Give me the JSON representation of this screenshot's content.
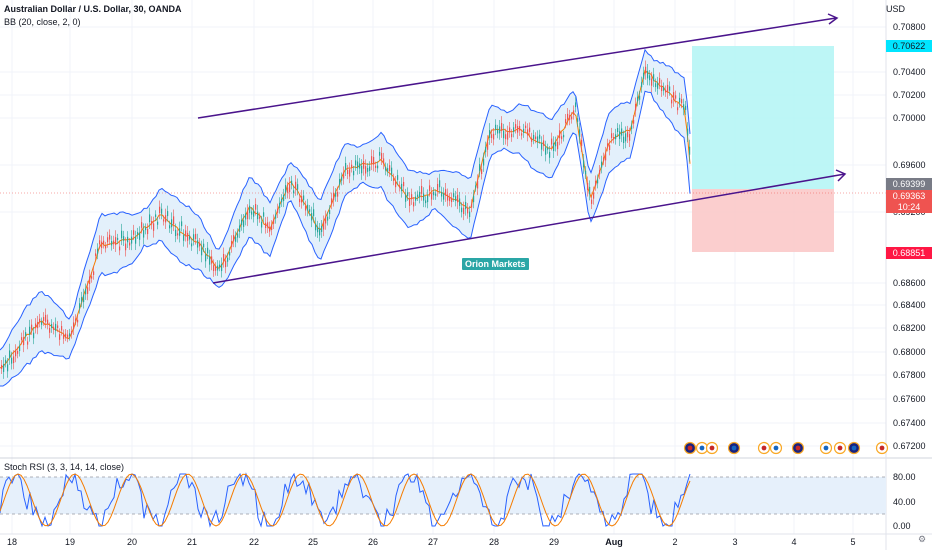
{
  "header": {
    "symbol_line": "Australian Dollar / U.S. Dollar, 30, OANDA",
    "indicator_line": "BB (20, close, 2, 0)"
  },
  "rsi_panel": {
    "label": "Stoch RSI (3, 3, 14, 14, close)",
    "levels": [
      "80.00",
      "40.00",
      "0.00"
    ]
  },
  "price_axis": {
    "currency": "USD",
    "labels": [
      "0.70800",
      "0.70400",
      "0.70200",
      "0.70000",
      "0.69600",
      "0.69200",
      "0.68600",
      "0.68400",
      "0.68200",
      "0.68000",
      "0.67800",
      "0.67600",
      "0.67400",
      "0.67200"
    ]
  },
  "price_tags": {
    "take_profit": "0.70622",
    "grey": "0.69399",
    "current": "0.69363",
    "countdown": "10:24",
    "stop_loss": "0.68851"
  },
  "time_axis": {
    "labels": [
      "18",
      "19",
      "20",
      "21",
      "22",
      "25",
      "26",
      "27",
      "28",
      "29",
      "Aug",
      "2",
      "3",
      "4",
      "5"
    ]
  },
  "watermark": "Orion Markets",
  "colors": {
    "candle_up": "#26a69a",
    "candle_down": "#ef5350",
    "bb_band": "#2962ff",
    "bb_fill": "#e3f0fb",
    "bb_basis": "#f57c00",
    "trendline": "#4a148c",
    "tp_zone": "#b2f5f5",
    "sl_zone": "#fac6c6",
    "rsi_k": "#2962ff",
    "rsi_d": "#f57c00"
  }
}
